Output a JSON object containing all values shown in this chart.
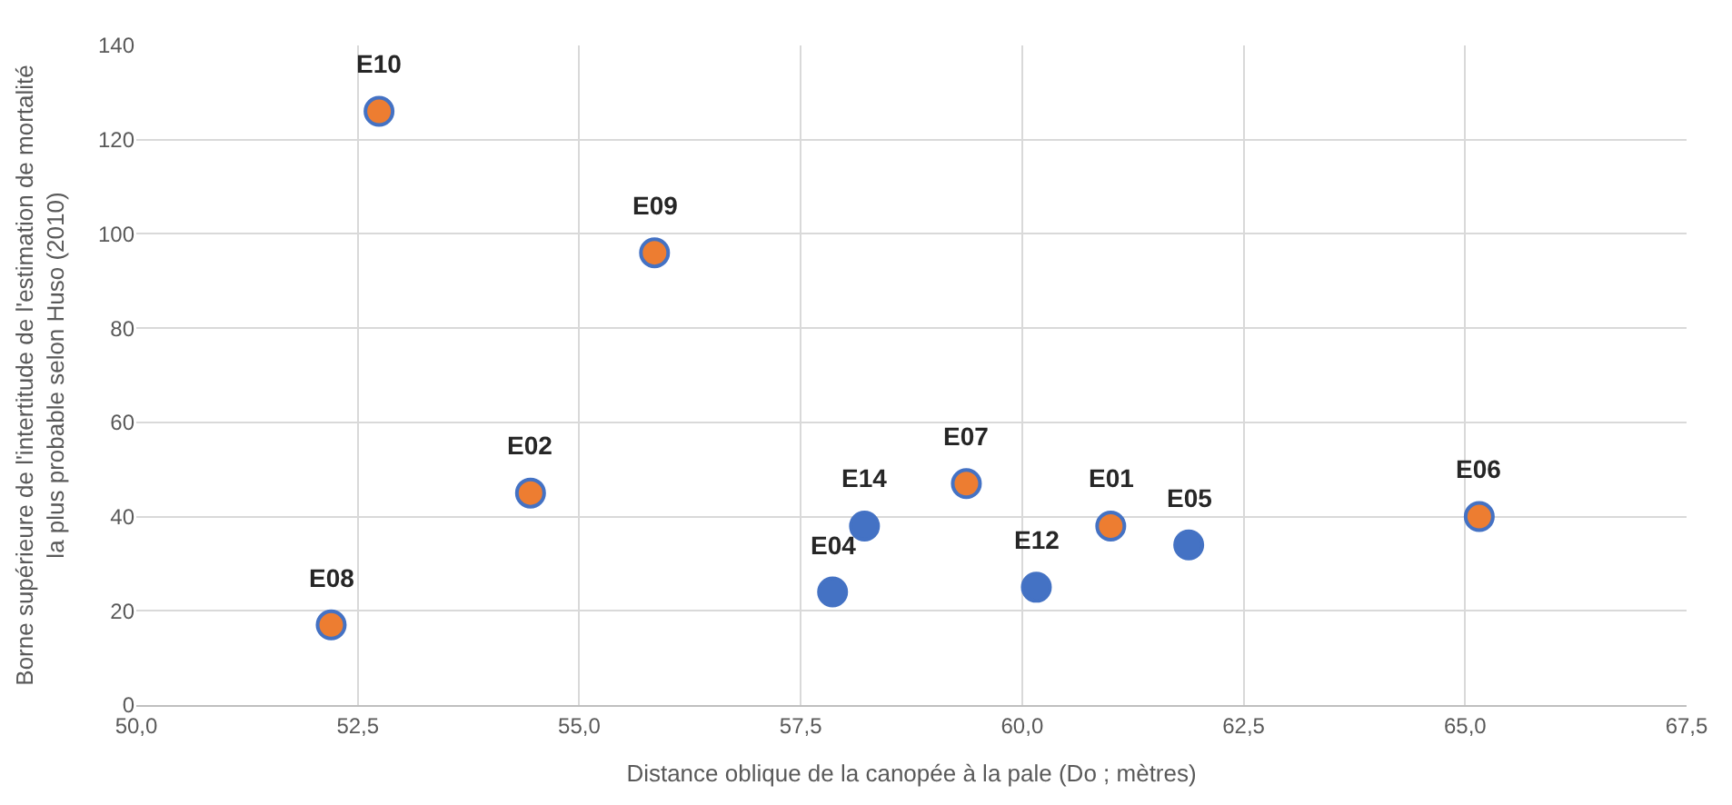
{
  "chart_data": {
    "type": "scatter",
    "xlabel": "Distance oblique de la canopée à la pale (Do ; mètres)",
    "ylabel": "Borne supérieure de l'intertitude de l'estimation de mortalité la plus probable selon Huso (2010)",
    "x": [
      52.74,
      55.85,
      54.45,
      52.2,
      57.86,
      58.22,
      59.37,
      60.16,
      61.0,
      61.88,
      65.16
    ],
    "series": [
      {
        "color": "#4472c4",
        "values": [
          126,
          96,
          45,
          17,
          24,
          38,
          47,
          25,
          38,
          34,
          40
        ],
        "colors": [
          "#ed7d31",
          "#ed7d31",
          "#ed7d31",
          "#ed7d31",
          "#4472c4",
          "#4472c4",
          "#ed7d31",
          "#4472c4",
          "#ed7d31",
          "#4472c4",
          "#ed7d31"
        ]
      }
    ],
    "annotations": [
      {
        "text": "E10",
        "x": 52.74,
        "y": 126
      },
      {
        "text": "E09",
        "x": 55.85,
        "y": 96
      },
      {
        "text": "E02",
        "x": 54.45,
        "y": 45
      },
      {
        "text": "E08",
        "x": 52.2,
        "y": 17
      },
      {
        "text": "E04",
        "x": 57.86,
        "y": 24
      },
      {
        "text": "E14",
        "x": 58.22,
        "y": 38
      },
      {
        "text": "E07",
        "x": 59.37,
        "y": 47
      },
      {
        "text": "E12",
        "x": 60.16,
        "y": 25
      },
      {
        "text": "E01",
        "x": 61.0,
        "y": 38
      },
      {
        "text": "E05",
        "x": 61.88,
        "y": 34
      },
      {
        "text": "E06",
        "x": 65.16,
        "y": 40
      }
    ],
    "xlim": [
      50,
      67.5
    ],
    "xticks": [
      {
        "value": 50,
        "label": "50,0"
      },
      {
        "value": 52.5,
        "label": "52,5"
      },
      {
        "value": 55,
        "label": "55,0"
      },
      {
        "value": 57.5,
        "label": "57,5"
      },
      {
        "value": 60,
        "label": "60,0"
      },
      {
        "value": 62.5,
        "label": "62,5"
      },
      {
        "value": 65,
        "label": "65,0"
      },
      {
        "value": 67.5,
        "label": "67,5"
      }
    ],
    "ylim": [
      0,
      140
    ],
    "yticks": [
      0,
      20,
      40,
      60,
      80,
      100,
      120,
      140
    ],
    "grid": true,
    "marker": "circle",
    "legend": false
  }
}
